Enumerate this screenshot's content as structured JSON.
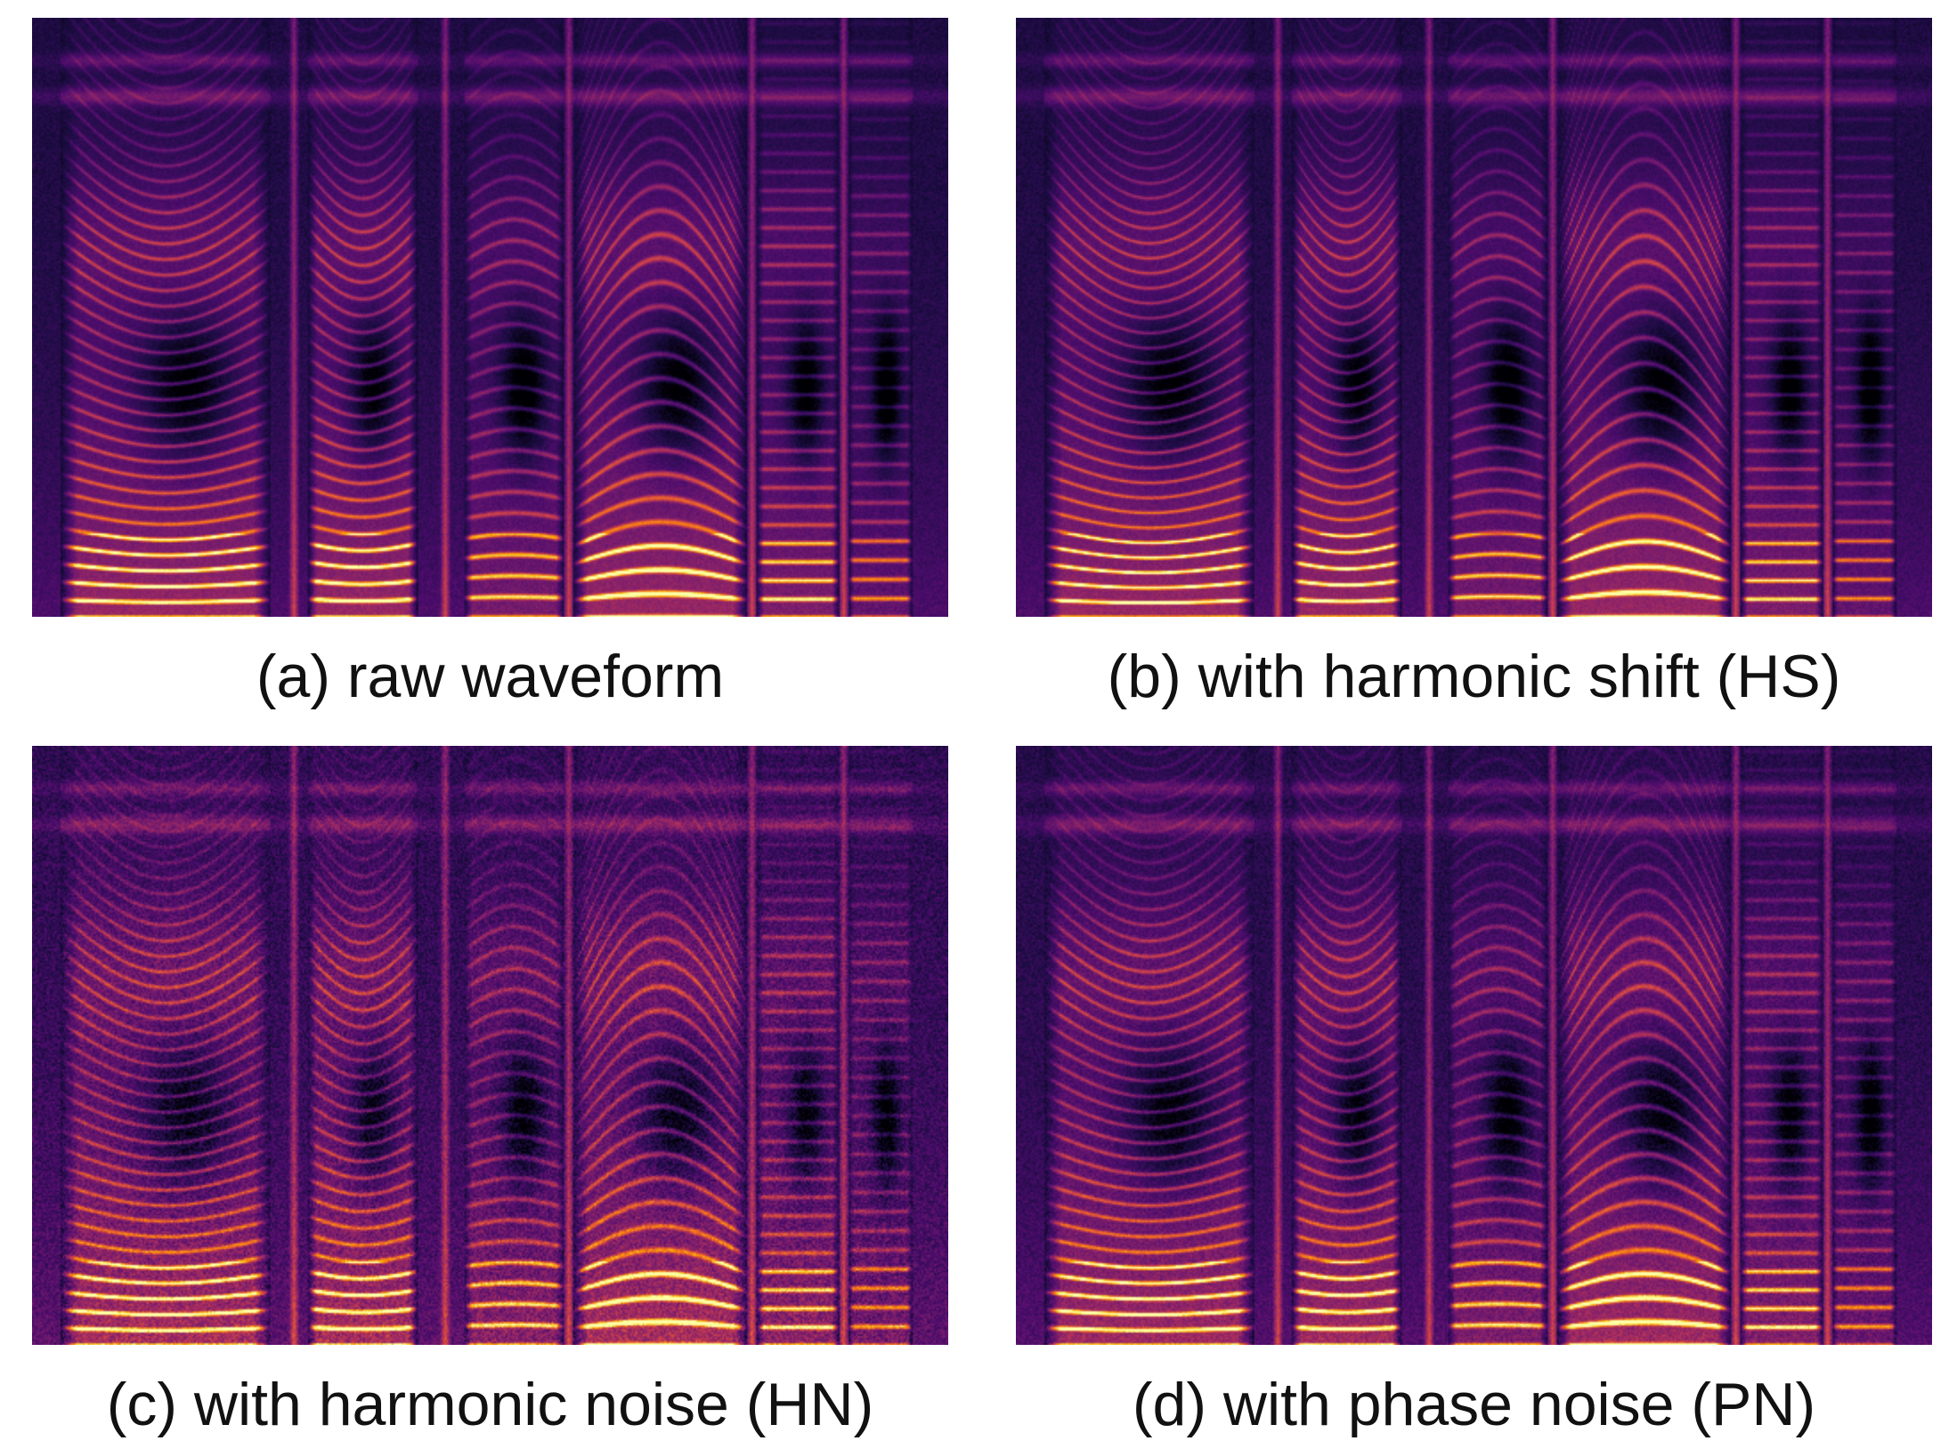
{
  "panels": [
    {
      "caption": "(a) raw waveform",
      "variant": "raw"
    },
    {
      "caption": "(b) with harmonic shift (HS)",
      "variant": "hs"
    },
    {
      "caption": "(c) with harmonic noise (HN)",
      "variant": "hn"
    },
    {
      "caption": "(d) with phase noise (PN)",
      "variant": "pn"
    }
  ],
  "colormap": [
    "#000004",
    "#1b0c41",
    "#4a0c6b",
    "#781c6d",
    "#a52c60",
    "#cf4446",
    "#ed6925",
    "#fb9b06",
    "#f7d13d",
    "#fcffa4"
  ]
}
